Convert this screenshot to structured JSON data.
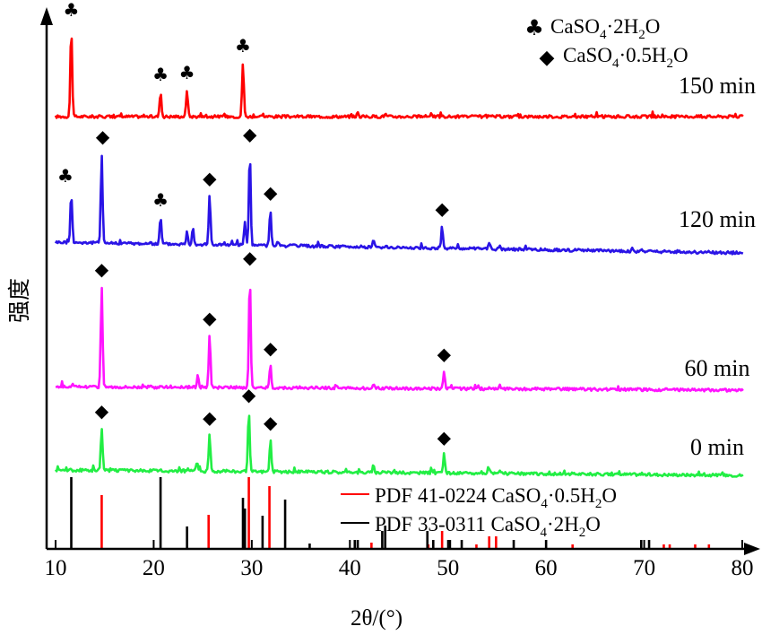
{
  "chart_data": {
    "type": "line",
    "xlabel": "2θ/(°)",
    "ylabel": "强度",
    "xlim": [
      10,
      80
    ],
    "xticks": [
      "10",
      "20",
      "30",
      "40",
      "50",
      "60",
      "70",
      "80"
    ],
    "grid": false,
    "legend": {
      "placement": "top-right",
      "entries": [
        {
          "marker": "club",
          "label": "CaSO4·2H2O"
        },
        {
          "marker": "diamond",
          "label": "CaSO4·0.5H2O"
        }
      ]
    },
    "reference_legend": {
      "placement": "bottom-right",
      "entries": [
        {
          "color": "#ff0000",
          "label": "PDF 41-0224 CaSO4·0.5H2O"
        },
        {
          "color": "#000000",
          "label": "PDF 33-0311 CaSO4·2H2O"
        }
      ]
    },
    "series": [
      {
        "name": "150 min",
        "color": "#ff0000",
        "peaks": [
          [
            11.6,
            100
          ],
          [
            20.7,
            28
          ],
          [
            23.4,
            30
          ],
          [
            29.1,
            60
          ],
          [
            31.1,
            3
          ],
          [
            40.8,
            4
          ],
          [
            43.6,
            3
          ],
          [
            48.3,
            5
          ]
        ],
        "markers": [
          [
            11.6,
            "club"
          ],
          [
            20.7,
            "club"
          ],
          [
            23.4,
            "club"
          ],
          [
            29.1,
            "club"
          ]
        ]
      },
      {
        "name": "120 min",
        "color": "#2a14e6",
        "peaks": [
          [
            11.6,
            55
          ],
          [
            14.7,
            100
          ],
          [
            20.7,
            30
          ],
          [
            23.4,
            14
          ],
          [
            24.0,
            20
          ],
          [
            25.7,
            55
          ],
          [
            29.3,
            25
          ],
          [
            29.8,
            105
          ],
          [
            31.9,
            40
          ],
          [
            42.4,
            8
          ],
          [
            49.4,
            25
          ],
          [
            54.2,
            8
          ],
          [
            55.3,
            4
          ]
        ],
        "markers": [
          [
            11.0,
            "club"
          ],
          [
            14.8,
            "diamond"
          ],
          [
            20.7,
            "club"
          ],
          [
            25.7,
            "diamond"
          ],
          [
            29.8,
            "diamond"
          ],
          [
            31.9,
            "diamond"
          ],
          [
            49.4,
            "diamond"
          ]
        ]
      },
      {
        "name": "60 min",
        "color": "#ff14ff",
        "peaks": [
          [
            14.7,
            125
          ],
          [
            24.5,
            15
          ],
          [
            25.7,
            65
          ],
          [
            29.8,
            140
          ],
          [
            31.9,
            28
          ],
          [
            38.6,
            4
          ],
          [
            42.4,
            5
          ],
          [
            49.6,
            22
          ],
          [
            55.3,
            4
          ]
        ],
        "markers": [
          [
            14.7,
            "diamond"
          ],
          [
            25.7,
            "diamond"
          ],
          [
            29.8,
            "diamond"
          ],
          [
            31.9,
            "diamond"
          ],
          [
            49.6,
            "diamond"
          ]
        ]
      },
      {
        "name": "0 min",
        "color": "#22ee44",
        "peaks": [
          [
            14.7,
            50
          ],
          [
            24.4,
            10
          ],
          [
            25.7,
            43
          ],
          [
            29.7,
            70
          ],
          [
            31.9,
            38
          ],
          [
            42.4,
            8
          ],
          [
            49.6,
            22
          ],
          [
            54.2,
            5
          ],
          [
            55.3,
            4
          ]
        ],
        "markers": [
          [
            14.7,
            "diamond"
          ],
          [
            25.7,
            "diamond"
          ],
          [
            29.7,
            "diamond"
          ],
          [
            31.9,
            "diamond"
          ],
          [
            49.6,
            "diamond"
          ]
        ]
      }
    ],
    "reference_patterns": [
      {
        "name": "PDF 41-0224 CaSO4·0.5H2O",
        "color": "#ff0000",
        "lines": [
          [
            14.7,
            60
          ],
          [
            25.6,
            38
          ],
          [
            29.7,
            80
          ],
          [
            31.8,
            70
          ],
          [
            42.2,
            7
          ],
          [
            48.0,
            5
          ],
          [
            49.4,
            20
          ],
          [
            52.9,
            5
          ],
          [
            54.2,
            14
          ],
          [
            54.9,
            14
          ],
          [
            62.7,
            5
          ],
          [
            72.0,
            5
          ],
          [
            72.6,
            5
          ],
          [
            75.2,
            5
          ],
          [
            76.6,
            5
          ]
        ]
      },
      {
        "name": "PDF 33-0311 CaSO4·2H2O",
        "color": "#000000",
        "lines": [
          [
            11.6,
            80
          ],
          [
            20.7,
            80
          ],
          [
            23.4,
            25
          ],
          [
            29.1,
            57
          ],
          [
            29.3,
            45
          ],
          [
            31.1,
            37
          ],
          [
            33.4,
            55
          ],
          [
            35.9,
            6
          ],
          [
            40.5,
            10
          ],
          [
            40.8,
            10
          ],
          [
            43.3,
            20
          ],
          [
            43.6,
            26
          ],
          [
            47.9,
            20
          ],
          [
            48.5,
            10
          ],
          [
            50.2,
            10
          ],
          [
            51.4,
            10
          ],
          [
            56.7,
            10
          ],
          [
            60.0,
            10
          ],
          [
            69.7,
            10
          ],
          [
            70.5,
            10
          ]
        ]
      }
    ]
  }
}
